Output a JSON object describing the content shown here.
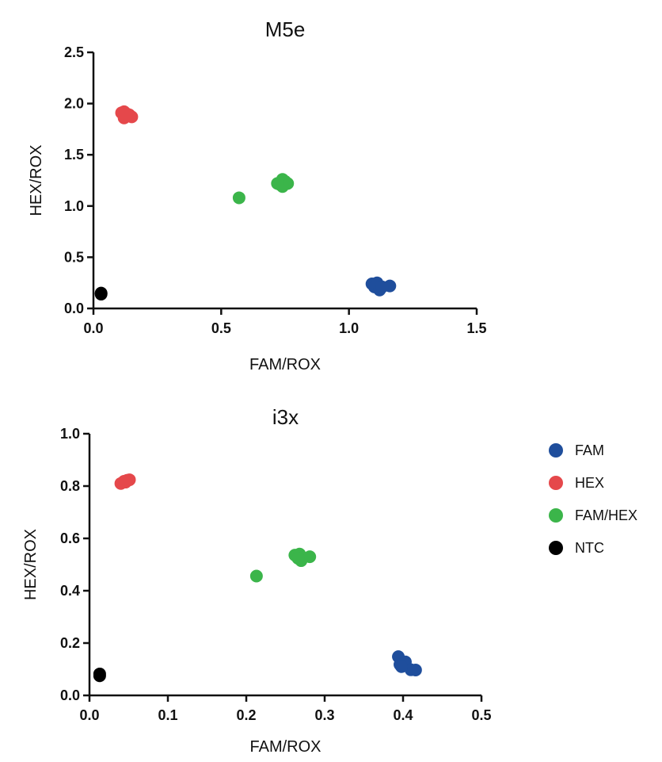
{
  "chart_data": [
    {
      "type": "scatter",
      "title": "M5e",
      "xlabel": "FAM/ROX",
      "ylabel": "HEX/ROX",
      "xlim": [
        0,
        1.5
      ],
      "ylim": [
        0,
        2.5
      ],
      "xticks": [
        0.0,
        0.5,
        1.0,
        1.5
      ],
      "yticks": [
        0.0,
        0.5,
        1.0,
        1.5,
        2.0,
        2.5
      ],
      "xtick_labels": [
        "0.0",
        "0.5",
        "1.0",
        "1.5"
      ],
      "ytick_labels": [
        "0.0",
        "0.5",
        "1.0",
        "1.5",
        "2.0",
        "2.5"
      ],
      "series": [
        {
          "name": "FAM",
          "color": "#1f4e9c",
          "points": [
            [
              1.09,
              0.24
            ],
            [
              1.11,
              0.25
            ],
            [
              1.1,
              0.21
            ],
            [
              1.12,
              0.18
            ],
            [
              1.16,
              0.22
            ],
            [
              1.13,
              0.21
            ]
          ]
        },
        {
          "name": "HEX",
          "color": "#e5484b",
          "points": [
            [
              0.11,
              1.91
            ],
            [
              0.12,
              1.92
            ],
            [
              0.14,
              1.89
            ],
            [
              0.15,
              1.87
            ],
            [
              0.12,
              1.86
            ],
            [
              0.13,
              1.9
            ]
          ]
        },
        {
          "name": "FAM/HEX",
          "color": "#3bb54a",
          "points": [
            [
              0.57,
              1.08
            ],
            [
              0.73,
              1.21
            ],
            [
              0.74,
              1.26
            ],
            [
              0.75,
              1.24
            ],
            [
              0.76,
              1.22
            ],
            [
              0.74,
              1.19
            ],
            [
              0.72,
              1.22
            ]
          ]
        },
        {
          "name": "NTC",
          "color": "#000000",
          "points": [
            [
              0.03,
              0.14
            ],
            [
              0.03,
              0.15
            ]
          ]
        }
      ]
    },
    {
      "type": "scatter",
      "title": "i3x",
      "xlabel": "FAM/ROX",
      "ylabel": "HEX/ROX",
      "xlim": [
        0,
        0.5
      ],
      "ylim": [
        0,
        1.0
      ],
      "xticks": [
        0.0,
        0.1,
        0.2,
        0.3,
        0.4,
        0.5
      ],
      "yticks": [
        0.0,
        0.2,
        0.4,
        0.6,
        0.8,
        1.0
      ],
      "xtick_labels": [
        "0.0",
        "0.1",
        "0.2",
        "0.3",
        "0.4",
        "0.5"
      ],
      "ytick_labels": [
        "0.0",
        "0.2",
        "0.4",
        "0.6",
        "0.8",
        "1.0"
      ],
      "series": [
        {
          "name": "FAM",
          "color": "#1f4e9c",
          "points": [
            [
              0.394,
              0.148
            ],
            [
              0.396,
              0.118
            ],
            [
              0.4,
              0.12
            ],
            [
              0.403,
              0.128
            ],
            [
              0.41,
              0.098
            ],
            [
              0.416,
              0.097
            ],
            [
              0.398,
              0.11
            ]
          ]
        },
        {
          "name": "HEX",
          "color": "#e5484b",
          "points": [
            [
              0.04,
              0.81
            ],
            [
              0.044,
              0.818
            ],
            [
              0.048,
              0.822
            ],
            [
              0.051,
              0.824
            ],
            [
              0.046,
              0.815
            ]
          ]
        },
        {
          "name": "FAM/HEX",
          "color": "#3bb54a",
          "points": [
            [
              0.213,
              0.456
            ],
            [
              0.262,
              0.536
            ],
            [
              0.268,
              0.54
            ],
            [
              0.272,
              0.526
            ],
            [
              0.27,
              0.515
            ],
            [
              0.281,
              0.53
            ],
            [
              0.266,
              0.524
            ]
          ]
        },
        {
          "name": "NTC",
          "color": "#000000",
          "points": [
            [
              0.013,
              0.075
            ],
            [
              0.013,
              0.082
            ]
          ]
        }
      ]
    }
  ],
  "legend": {
    "placement": "right",
    "items": [
      {
        "label": "FAM",
        "color": "#1f4e9c"
      },
      {
        "label": "HEX",
        "color": "#e5484b"
      },
      {
        "label": "FAM/HEX",
        "color": "#3bb54a"
      },
      {
        "label": "NTC",
        "color": "#000000"
      }
    ]
  }
}
